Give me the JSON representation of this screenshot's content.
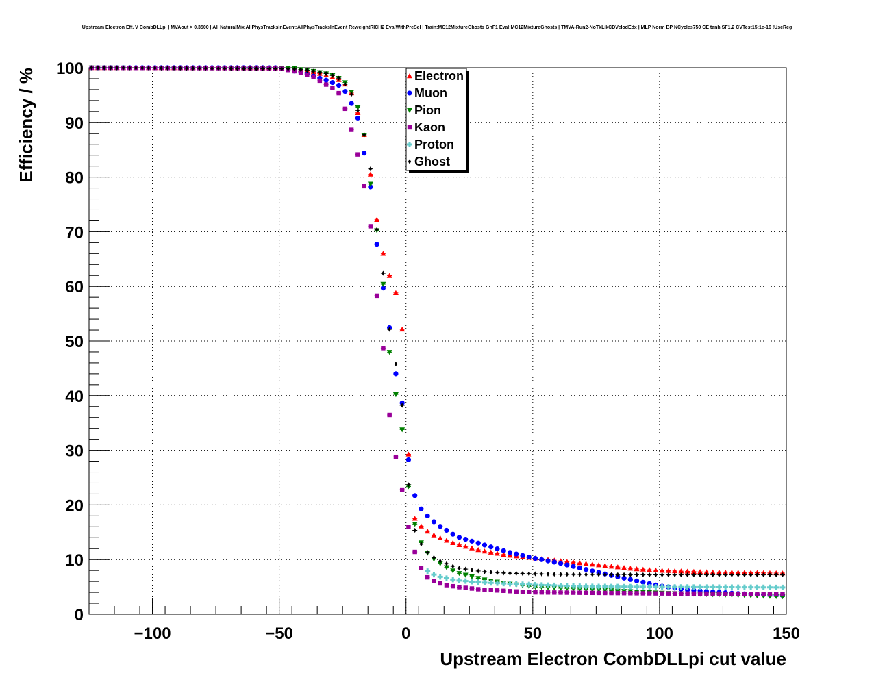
{
  "chart_data": {
    "type": "scatter",
    "title": "Upstream Electron Eff. V CombDLLpi | MVAout > 0.3500 | All NaturalMix AllPhysTracksInEvent:AllPhysTracksInEvent ReweightRICH2 EvalWithPreSel | Train:MC12MixtureGhosts GhF1 Eval:MC12MixtureGhosts | TMVA-Run2-NoTkLikCDVelodEdx | MLP Norm BP NCycles750 CE tanh SF1.2 CVTest15:1e-16 !UseReg",
    "xlabel": "Upstream Electron CombDLLpi cut value",
    "ylabel": "Efficiency / %",
    "xlim": [
      -125,
      150
    ],
    "ylim": [
      0,
      100
    ],
    "xticks": [
      -100,
      -50,
      0,
      50,
      100,
      150
    ],
    "xtick_labels": [
      "−100",
      "−50",
      "0",
      "50",
      "100",
      "150"
    ],
    "yticks": [
      0,
      10,
      20,
      30,
      40,
      50,
      60,
      70,
      80,
      90,
      100
    ],
    "ytick_labels": [
      "0",
      "10",
      "20",
      "30",
      "40",
      "50",
      "60",
      "70",
      "80",
      "90",
      "100"
    ],
    "grid": true,
    "legend_position": "top-center",
    "series": [
      {
        "name": "Electron",
        "color": "#ff0000",
        "marker": "triangle-up"
      },
      {
        "name": "Muon",
        "color": "#0000ff",
        "marker": "circle"
      },
      {
        "name": "Pion",
        "color": "#008000",
        "marker": "triangle-down"
      },
      {
        "name": "Kaon",
        "color": "#990099",
        "marker": "square"
      },
      {
        "name": "Proton",
        "color": "#66cccc",
        "marker": "cross"
      },
      {
        "name": "Ghost",
        "color": "#000000",
        "marker": "diamond"
      }
    ],
    "curve_points": [
      [
        [
          -125,
          100
        ],
        [
          -50,
          100
        ],
        [
          -40,
          99.6
        ],
        [
          -30,
          98.5
        ],
        [
          -25,
          97.5
        ],
        [
          -22,
          96
        ],
        [
          -20,
          93.5
        ],
        [
          -18,
          90
        ],
        [
          -16,
          87
        ],
        [
          -14,
          80.5
        ],
        [
          -12,
          73.7
        ],
        [
          -10,
          67.7
        ],
        [
          -7,
          62.6
        ],
        [
          -4,
          58.8
        ],
        [
          -1,
          50.8
        ],
        [
          2,
          18.5
        ],
        [
          5,
          16.5
        ],
        [
          8,
          15.3
        ],
        [
          12,
          14.2
        ],
        [
          20,
          12.8
        ],
        [
          30,
          11.6
        ],
        [
          40,
          10.8
        ],
        [
          50,
          10.3
        ],
        [
          60,
          9.8
        ],
        [
          70,
          9.3
        ],
        [
          80,
          8.8
        ],
        [
          90,
          8.3
        ],
        [
          100,
          8.0
        ],
        [
          120,
          7.7
        ],
        [
          150,
          7.5
        ]
      ],
      [
        [
          -125,
          100
        ],
        [
          -50,
          100
        ],
        [
          -40,
          99.0
        ],
        [
          -30,
          97.5
        ],
        [
          -25,
          96.5
        ],
        [
          -22,
          94
        ],
        [
          -19,
          90.8
        ],
        [
          -17,
          85.6
        ],
        [
          -14,
          78.2
        ],
        [
          -12,
          69.3
        ],
        [
          -9,
          59.7
        ],
        [
          -6,
          51
        ],
        [
          -4,
          44
        ],
        [
          -1,
          37.6
        ],
        [
          2,
          23.6
        ],
        [
          5,
          19.8
        ],
        [
          8,
          18.2
        ],
        [
          12,
          16.5
        ],
        [
          20,
          14.2
        ],
        [
          30,
          12.8
        ],
        [
          40,
          11.4
        ],
        [
          50,
          10.3
        ],
        [
          60,
          9.4
        ],
        [
          70,
          8.3
        ],
        [
          80,
          7.2
        ],
        [
          90,
          6.2
        ],
        [
          100,
          5.2
        ],
        [
          110,
          4.5
        ],
        [
          130,
          3.8
        ],
        [
          150,
          3.4
        ]
      ],
      [
        [
          -125,
          100
        ],
        [
          -45,
          99.9
        ],
        [
          -38,
          99.5
        ],
        [
          -30,
          98.8
        ],
        [
          -25,
          97.8
        ],
        [
          -23,
          96.8
        ],
        [
          -20,
          94.3
        ],
        [
          -17,
          89.6
        ],
        [
          -15,
          82
        ],
        [
          -12,
          72.2
        ],
        [
          -9,
          60.4
        ],
        [
          -7,
          49.5
        ],
        [
          -4,
          40.2
        ],
        [
          -1,
          32.5
        ],
        [
          2,
          18.8
        ],
        [
          5,
          14.2
        ],
        [
          7,
          12
        ],
        [
          10,
          10.4
        ],
        [
          15,
          8.8
        ],
        [
          20,
          7.6
        ],
        [
          30,
          6.4
        ],
        [
          40,
          5.6
        ],
        [
          50,
          5.0
        ],
        [
          70,
          4.6
        ],
        [
          100,
          3.9
        ],
        [
          150,
          3.2
        ]
      ],
      [
        [
          -125,
          100
        ],
        [
          -50,
          99.9
        ],
        [
          -42,
          99.2
        ],
        [
          -36,
          98.2
        ],
        [
          -30,
          96.5
        ],
        [
          -27,
          95.8
        ],
        [
          -25,
          94
        ],
        [
          -23,
          91
        ],
        [
          -20,
          86.3
        ],
        [
          -17,
          79.8
        ],
        [
          -14,
          71
        ],
        [
          -12,
          60.2
        ],
        [
          -9,
          48.7
        ],
        [
          -7,
          38
        ],
        [
          -4,
          28.8
        ],
        [
          -1,
          21.6
        ],
        [
          2,
          13.2
        ],
        [
          5,
          9.6
        ],
        [
          7,
          7.3
        ],
        [
          10,
          6.2
        ],
        [
          15,
          5.4
        ],
        [
          20,
          5.0
        ],
        [
          30,
          4.5
        ],
        [
          50,
          4.0
        ],
        [
          100,
          3.8
        ],
        [
          150,
          3.7
        ]
      ],
      [
        [
          8,
          8.0
        ],
        [
          12,
          7.0
        ],
        [
          20,
          6.2
        ],
        [
          30,
          5.8
        ],
        [
          50,
          5.4
        ],
        [
          70,
          5.1
        ],
        [
          100,
          5.0
        ],
        [
          150,
          4.9
        ]
      ],
      [
        [
          -125,
          100
        ],
        [
          -45,
          99.8
        ],
        [
          -38,
          99.5
        ],
        [
          -30,
          98.8
        ],
        [
          -26,
          98
        ],
        [
          -23,
          96.5
        ],
        [
          -20,
          93.8
        ],
        [
          -17,
          89
        ],
        [
          -14,
          81.5
        ],
        [
          -12,
          72
        ],
        [
          -9,
          62.4
        ],
        [
          -7,
          53.4
        ],
        [
          -4,
          45.8
        ],
        [
          -1,
          36.7
        ],
        [
          2,
          17.2
        ],
        [
          5,
          13.5
        ],
        [
          8,
          11.5
        ],
        [
          12,
          10
        ],
        [
          20,
          8.5
        ],
        [
          30,
          7.8
        ],
        [
          40,
          7.5
        ],
        [
          60,
          7.3
        ],
        [
          100,
          7.2
        ],
        [
          150,
          7.2
        ]
      ]
    ]
  }
}
